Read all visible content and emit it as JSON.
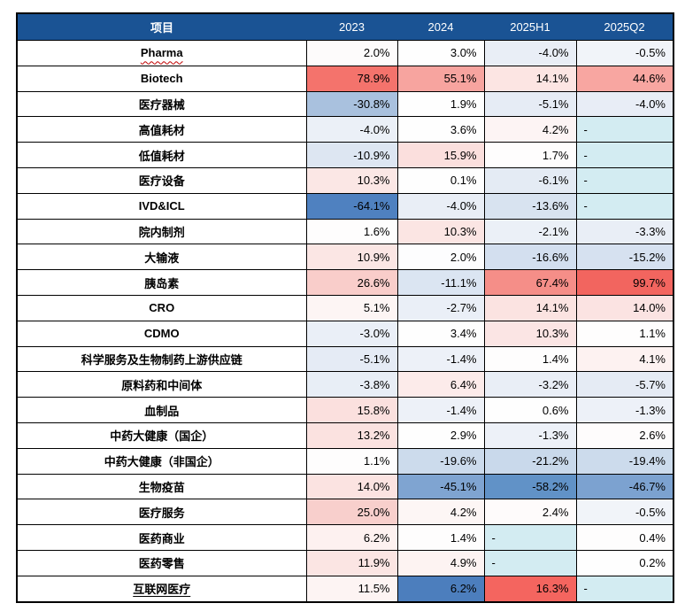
{
  "colors": {
    "header_bg": "#1A5394",
    "header_text": "#FFFFFF",
    "dash_bg": "#D3ECF2",
    "border": "#000000",
    "label_column_bg": "#FFFFFF",
    "strong_red": "#F2655F",
    "strong_blue": "#4F81C0"
  },
  "table": {
    "header": {
      "item_label": "项目",
      "year_columns": [
        "2023",
        "2024",
        "2025H1",
        "2025Q2"
      ]
    },
    "rows": [
      {
        "label": "Pharma",
        "decoration": "red-wavy-underline",
        "values": [
          "2.0%",
          "3.0%",
          "-4.0%",
          "-0.5%"
        ],
        "cell_colors": [
          "#FDFBFB",
          "#FEFEFE",
          "#E9EEF6",
          "#F1F4F9"
        ]
      },
      {
        "label": "Biotech",
        "decoration": null,
        "values": [
          "78.9%",
          "55.1%",
          "14.1%",
          "44.6%"
        ],
        "cell_colors": [
          "#F4736C",
          "#F7A49F",
          "#FCE5E3",
          "#F8A6A1"
        ]
      },
      {
        "label": "医疗器械",
        "decoration": null,
        "values": [
          "-30.8%",
          "1.9%",
          "-5.1%",
          "-4.0%"
        ],
        "cell_colors": [
          "#A9C1DE",
          "#FEFEFE",
          "#E6ECF5",
          "#E8EDF6"
        ]
      },
      {
        "label": "高值耗材",
        "decoration": null,
        "values": [
          "-4.0%",
          "3.6%",
          "4.2%",
          "-"
        ],
        "cell_colors": [
          "#EBF0F7",
          "#FEFEFE",
          "#FDF4F4",
          "#D3ECF2"
        ]
      },
      {
        "label": "低值耗材",
        "decoration": null,
        "values": [
          "-10.9%",
          "15.9%",
          "1.7%",
          "-"
        ],
        "cell_colors": [
          "#DDE6F2",
          "#FBDFDD",
          "#FEFDFD",
          "#D3ECF2"
        ]
      },
      {
        "label": "医疗设备",
        "decoration": null,
        "values": [
          "10.3%",
          "0.1%",
          "-6.1%",
          "-"
        ],
        "cell_colors": [
          "#FBE7E5",
          "#FEFEFE",
          "#E4EBF4",
          "#D3ECF2"
        ]
      },
      {
        "label": "IVD&ICL",
        "decoration": null,
        "values": [
          "-64.1%",
          "-4.0%",
          "-13.6%",
          "-"
        ],
        "cell_colors": [
          "#4F81C0",
          "#E9EEF6",
          "#D8E3F0",
          "#D3ECF2"
        ]
      },
      {
        "label": "院内制剂",
        "decoration": null,
        "values": [
          "1.6%",
          "10.3%",
          "-2.1%",
          "-3.3%"
        ],
        "cell_colors": [
          "#FEFDFD",
          "#FBE5E3",
          "#EBF0F7",
          "#E9EEF6"
        ]
      },
      {
        "label": "大输液",
        "decoration": null,
        "values": [
          "10.9%",
          "2.0%",
          "-16.6%",
          "-15.2%"
        ],
        "cell_colors": [
          "#FBE6E4",
          "#FDFDFE",
          "#D3DFEF",
          "#D6E1F0"
        ]
      },
      {
        "label": "胰岛素",
        "decoration": null,
        "values": [
          "26.6%",
          "-11.1%",
          "67.4%",
          "99.7%"
        ],
        "cell_colors": [
          "#F9CDCA",
          "#DBE5F2",
          "#F58E88",
          "#F2655F"
        ]
      },
      {
        "label": "CRO",
        "decoration": null,
        "values": [
          "5.1%",
          "-2.7%",
          "14.1%",
          "14.0%"
        ],
        "cell_colors": [
          "#FDF5F4",
          "#EAEFF7",
          "#FBE3E1",
          "#FBE3E2"
        ]
      },
      {
        "label": "CDMO",
        "decoration": null,
        "values": [
          "-3.0%",
          "3.4%",
          "10.3%",
          "1.1%"
        ],
        "cell_colors": [
          "#EAEFF7",
          "#FEFEFE",
          "#FBE5E4",
          "#FEFDFD"
        ]
      },
      {
        "label": "科学服务及生物制药上游供应链",
        "decoration": null,
        "values": [
          "-5.1%",
          "-1.4%",
          "1.4%",
          "4.1%"
        ],
        "cell_colors": [
          "#E5EBF5",
          "#EDF1F8",
          "#FEFDFD",
          "#FDF2F1"
        ]
      },
      {
        "label": "原料药和中间体",
        "decoration": null,
        "values": [
          "-3.8%",
          "6.4%",
          "-3.2%",
          "-5.7%"
        ],
        "cell_colors": [
          "#E8EEF6",
          "#FCEBEA",
          "#E9EEF6",
          "#E5EBF4"
        ]
      },
      {
        "label": "血制品",
        "decoration": null,
        "values": [
          "15.8%",
          "-1.4%",
          "0.6%",
          "-1.3%"
        ],
        "cell_colors": [
          "#FBE0DE",
          "#EDF1F8",
          "#FEFEFE",
          "#EDF1F8"
        ]
      },
      {
        "label": "中药大健康（国企）",
        "decoration": null,
        "values": [
          "13.2%",
          "2.9%",
          "-1.3%",
          "2.6%"
        ],
        "cell_colors": [
          "#FBE2E0",
          "#FEFEFE",
          "#EDF1F8",
          "#FEFCFC"
        ]
      },
      {
        "label": "中药大健康（非国企）",
        "decoration": null,
        "values": [
          "1.1%",
          "-19.6%",
          "-21.2%",
          "-19.4%"
        ],
        "cell_colors": [
          "#FEFDFD",
          "#CCDBEC",
          "#C9D9EB",
          "#CCDBEC"
        ]
      },
      {
        "label": "生物疫苗",
        "decoration": null,
        "values": [
          "14.0%",
          "-45.1%",
          "-58.2%",
          "-46.7%"
        ],
        "cell_colors": [
          "#FBE3E1",
          "#7FA4D1",
          "#6192C7",
          "#7CA2D0"
        ]
      },
      {
        "label": "医疗服务",
        "decoration": null,
        "values": [
          "25.0%",
          "4.2%",
          "2.4%",
          "-0.5%"
        ],
        "cell_colors": [
          "#F8CFCC",
          "#FDF6F5",
          "#FEFBFB",
          "#F1F4F9"
        ]
      },
      {
        "label": "医药商业",
        "decoration": null,
        "values": [
          "6.2%",
          "1.4%",
          "-",
          "0.4%"
        ],
        "cell_colors": [
          "#FDF1F0",
          "#FEFDFD",
          "#D3ECF2",
          "#FEFDFD"
        ]
      },
      {
        "label": "医药零售",
        "decoration": null,
        "values": [
          "11.9%",
          "4.9%",
          "-",
          "0.2%"
        ],
        "cell_colors": [
          "#FBE5E3",
          "#FDF3F2",
          "#D3ECF2",
          "#FEFEFE"
        ]
      },
      {
        "label": "互联网医疗",
        "decoration": "underline",
        "values": [
          "11.5%",
          "6.2%",
          "16.3%",
          "-"
        ],
        "cell_colors": [
          "#FDF4F3",
          "#4C7EBD",
          "#F4655F",
          "#D3ECF2"
        ]
      }
    ]
  }
}
